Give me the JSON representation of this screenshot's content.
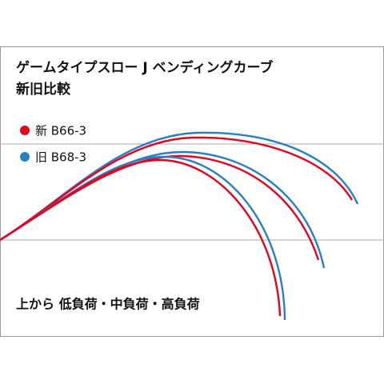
{
  "header": {
    "title": "ゲームタイプスロー J ベンディングカーブ",
    "subtitle": "新旧比較"
  },
  "legend": [
    {
      "label": "新 B66-3"
    },
    {
      "label": "旧 B68-3"
    }
  ],
  "footer": {
    "text": "上から 低負荷・中負荷・高負荷"
  }
}
